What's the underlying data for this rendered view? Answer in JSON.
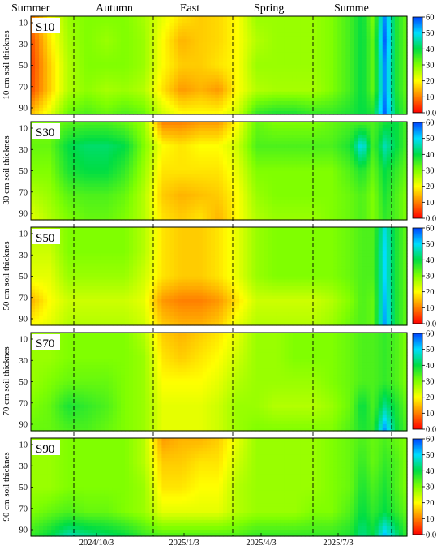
{
  "chart_data": {
    "type": "heatmap",
    "seasons": [
      "Summer",
      "Autumn",
      "East",
      "Spring",
      "Summe"
    ],
    "x_dates": [
      "2024/10/3",
      "2025/1/3",
      "2025/4/3",
      "2025/7/3"
    ],
    "y_ticks": [
      "10",
      "30",
      "50",
      "70",
      "90"
    ],
    "colorbar": {
      "ticks": [
        "0.0",
        "10",
        "20",
        "30",
        "40",
        "50",
        "60"
      ],
      "stops": [
        "#ff0000",
        "#ff8000",
        "#ffff00",
        "#80ff00",
        "#00dd44",
        "#00ddff",
        "#0044ff"
      ],
      "range": [
        0,
        60
      ]
    },
    "x_fractions": [
      0,
      0.05,
      0.1,
      0.15,
      0.2,
      0.25,
      0.3,
      0.35,
      0.4,
      0.45,
      0.5,
      0.55,
      0.6,
      0.65,
      0.7,
      0.75,
      0.8,
      0.85,
      0.88,
      0.91,
      0.94,
      0.97,
      1.0
    ],
    "panels": [
      {
        "title": "S10",
        "ylabel": "10 cm soil thicknes",
        "depths": [
          10,
          30,
          50,
          70,
          90
        ],
        "grid": [
          [
            10,
            20,
            28,
            30,
            30,
            30,
            27,
            22,
            18,
            16,
            17,
            20,
            28,
            28,
            28,
            28,
            30,
            35,
            40,
            30,
            55,
            38,
            32
          ],
          [
            6,
            18,
            27,
            30,
            28,
            30,
            28,
            20,
            14,
            16,
            17,
            20,
            26,
            28,
            28,
            28,
            30,
            35,
            40,
            32,
            58,
            38,
            32
          ],
          [
            5,
            16,
            26,
            30,
            30,
            30,
            28,
            20,
            16,
            16,
            18,
            20,
            28,
            28,
            28,
            28,
            30,
            35,
            40,
            32,
            55,
            38,
            32
          ],
          [
            6,
            16,
            26,
            29,
            27,
            28,
            26,
            18,
            12,
            14,
            12,
            20,
            26,
            27,
            27,
            27,
            30,
            35,
            40,
            32,
            55,
            38,
            32
          ],
          [
            15,
            22,
            32,
            34,
            32,
            34,
            32,
            24,
            20,
            20,
            20,
            24,
            36,
            38,
            38,
            36,
            36,
            38,
            40,
            38,
            58,
            40,
            34
          ]
        ]
      },
      {
        "title": "S30",
        "ylabel": "30 cm soil thicknes",
        "depths": [
          10,
          30,
          50,
          70,
          90
        ],
        "grid": [
          [
            30,
            30,
            33,
            34,
            34,
            32,
            28,
            10,
            10,
            12,
            12,
            20,
            32,
            30,
            30,
            30,
            32,
            34,
            34,
            34,
            38,
            40,
            34
          ],
          [
            32,
            32,
            40,
            42,
            42,
            40,
            30,
            20,
            18,
            20,
            20,
            24,
            34,
            34,
            34,
            34,
            34,
            38,
            50,
            34,
            46,
            40,
            34
          ],
          [
            30,
            30,
            38,
            40,
            40,
            36,
            28,
            18,
            18,
            18,
            18,
            22,
            30,
            30,
            30,
            30,
            30,
            34,
            38,
            32,
            40,
            36,
            32
          ],
          [
            26,
            28,
            33,
            34,
            34,
            32,
            26,
            16,
            14,
            15,
            16,
            20,
            28,
            30,
            30,
            30,
            30,
            32,
            34,
            30,
            38,
            34,
            30
          ],
          [
            22,
            26,
            30,
            32,
            32,
            30,
            26,
            18,
            16,
            18,
            14,
            20,
            26,
            28,
            28,
            28,
            30,
            32,
            34,
            30,
            36,
            34,
            30
          ]
        ]
      },
      {
        "title": "S50",
        "ylabel": "50 cm soil thicknes",
        "depths": [
          10,
          30,
          50,
          70,
          90
        ],
        "grid": [
          [
            26,
            26,
            30,
            30,
            30,
            30,
            26,
            18,
            16,
            16,
            18,
            22,
            28,
            30,
            30,
            30,
            30,
            32,
            34,
            34,
            48,
            38,
            32
          ],
          [
            24,
            24,
            30,
            30,
            30,
            30,
            26,
            18,
            16,
            16,
            18,
            22,
            28,
            30,
            30,
            30,
            30,
            32,
            34,
            34,
            50,
            38,
            32
          ],
          [
            22,
            22,
            28,
            28,
            28,
            28,
            24,
            18,
            16,
            16,
            18,
            22,
            28,
            30,
            30,
            30,
            30,
            32,
            34,
            34,
            50,
            38,
            32
          ],
          [
            14,
            20,
            24,
            24,
            24,
            24,
            22,
            12,
            10,
            10,
            12,
            18,
            24,
            24,
            24,
            24,
            26,
            30,
            34,
            32,
            52,
            38,
            32
          ],
          [
            20,
            22,
            26,
            26,
            26,
            26,
            24,
            16,
            14,
            14,
            16,
            22,
            26,
            26,
            26,
            26,
            28,
            32,
            34,
            32,
            54,
            38,
            32
          ]
        ]
      },
      {
        "title": "S70",
        "ylabel": "70 cm soil thicknes",
        "depths": [
          10,
          30,
          50,
          70,
          90
        ],
        "grid": [
          [
            28,
            28,
            30,
            30,
            30,
            30,
            26,
            16,
            14,
            16,
            18,
            22,
            28,
            28,
            30,
            30,
            30,
            32,
            34,
            34,
            36,
            34,
            30
          ],
          [
            28,
            28,
            30,
            30,
            30,
            30,
            28,
            18,
            16,
            18,
            20,
            24,
            28,
            28,
            30,
            30,
            30,
            32,
            34,
            34,
            36,
            34,
            30
          ],
          [
            28,
            30,
            32,
            32,
            32,
            30,
            28,
            20,
            20,
            20,
            22,
            26,
            28,
            28,
            28,
            28,
            30,
            32,
            34,
            34,
            36,
            34,
            30
          ],
          [
            30,
            32,
            38,
            36,
            34,
            30,
            28,
            22,
            22,
            22,
            24,
            28,
            28,
            26,
            26,
            26,
            28,
            32,
            40,
            34,
            44,
            38,
            32
          ],
          [
            32,
            32,
            34,
            34,
            32,
            30,
            28,
            22,
            22,
            22,
            24,
            28,
            30,
            30,
            30,
            30,
            30,
            34,
            38,
            36,
            55,
            40,
            34
          ]
        ]
      },
      {
        "title": "S90",
        "ylabel": "90 cm soil thicknes",
        "depths": [
          10,
          30,
          50,
          70,
          90
        ],
        "grid": [
          [
            28,
            28,
            30,
            30,
            30,
            30,
            26,
            12,
            14,
            14,
            16,
            22,
            28,
            28,
            28,
            28,
            30,
            32,
            34,
            32,
            34,
            32,
            30
          ],
          [
            28,
            28,
            30,
            30,
            30,
            30,
            26,
            16,
            16,
            18,
            18,
            24,
            28,
            28,
            28,
            28,
            30,
            32,
            36,
            32,
            36,
            34,
            30
          ],
          [
            28,
            28,
            30,
            30,
            30,
            30,
            28,
            18,
            18,
            20,
            20,
            26,
            28,
            28,
            28,
            28,
            30,
            32,
            38,
            34,
            38,
            34,
            30
          ],
          [
            30,
            32,
            34,
            32,
            32,
            30,
            28,
            22,
            22,
            22,
            22,
            26,
            28,
            28,
            28,
            30,
            30,
            34,
            40,
            36,
            40,
            36,
            32
          ],
          [
            36,
            40,
            46,
            44,
            42,
            40,
            36,
            34,
            34,
            34,
            34,
            34,
            36,
            36,
            36,
            36,
            36,
            38,
            44,
            40,
            52,
            44,
            36
          ]
        ]
      }
    ]
  }
}
